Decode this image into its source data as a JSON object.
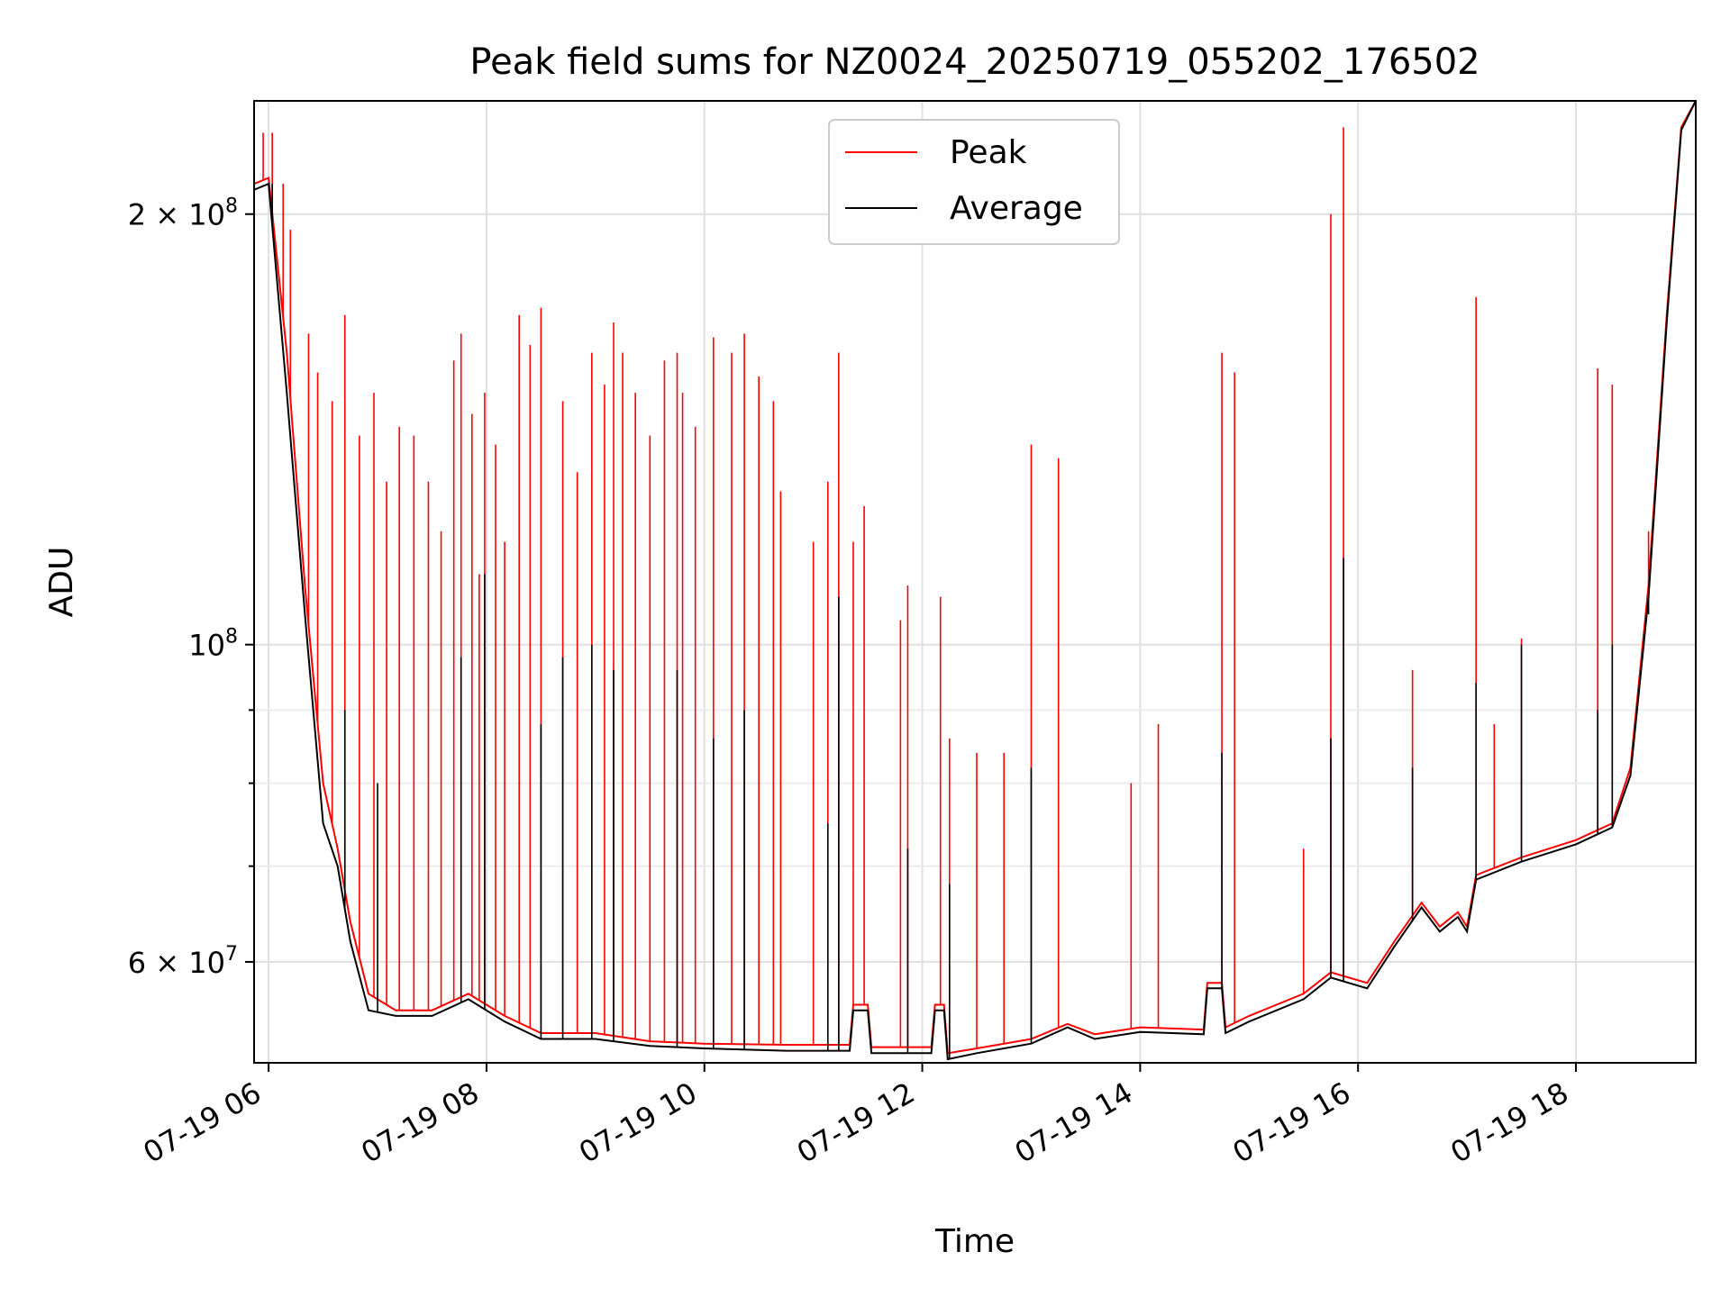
{
  "chart_data": {
    "type": "line",
    "title": "Peak field sums for NZ0024_20250719_055202_176502",
    "xlabel": "Time",
    "ylabel": "ADU",
    "x_scale": "time",
    "y_scale": "log",
    "xlim": [
      "2025-07-19 05:52",
      "2025-07-19 19:06"
    ],
    "ylim": [
      51000000,
      240000000
    ],
    "grid": true,
    "legend_position": "top-center",
    "x_ticks": [
      {
        "value": "2025-07-19 06:00",
        "label": "07-19 06"
      },
      {
        "value": "2025-07-19 08:00",
        "label": "07-19 08"
      },
      {
        "value": "2025-07-19 10:00",
        "label": "07-19 10"
      },
      {
        "value": "2025-07-19 12:00",
        "label": "07-19 12"
      },
      {
        "value": "2025-07-19 14:00",
        "label": "07-19 14"
      },
      {
        "value": "2025-07-19 16:00",
        "label": "07-19 16"
      },
      {
        "value": "2025-07-19 18:00",
        "label": "07-19 18"
      }
    ],
    "y_major_ticks": [
      {
        "value": 60000000,
        "label": "6 × 10^7",
        "mantissa": "6 × 10",
        "exp": "7"
      },
      {
        "value": 100000000,
        "label": "10^8",
        "mantissa": "10",
        "exp": "8"
      },
      {
        "value": 200000000,
        "label": "2 × 10^8",
        "mantissa": "2 × 10",
        "exp": "8"
      }
    ],
    "y_minor_ticks": [
      70000000,
      80000000,
      90000000
    ],
    "series": [
      {
        "name": "Peak",
        "color": "#ff0000",
        "baseline": [
          [
            "2025-07-19 05:52",
            210000000
          ],
          [
            "2025-07-19 06:00",
            212000000
          ],
          [
            "2025-07-19 06:10",
            160000000
          ],
          [
            "2025-07-19 06:20",
            110000000
          ],
          [
            "2025-07-19 06:30",
            80000000
          ],
          [
            "2025-07-19 06:38",
            72000000
          ],
          [
            "2025-07-19 06:45",
            64000000
          ],
          [
            "2025-07-19 06:55",
            57000000
          ],
          [
            "2025-07-19 07:10",
            55500000
          ],
          [
            "2025-07-19 07:30",
            55500000
          ],
          [
            "2025-07-19 07:50",
            57000000
          ],
          [
            "2025-07-19 08:10",
            55000000
          ],
          [
            "2025-07-19 08:30",
            53500000
          ],
          [
            "2025-07-19 09:00",
            53500000
          ],
          [
            "2025-07-19 09:30",
            52800000
          ],
          [
            "2025-07-19 10:00",
            52600000
          ],
          [
            "2025-07-19 10:45",
            52500000
          ],
          [
            "2025-07-19 11:20",
            52500000
          ],
          [
            "2025-07-19 11:22",
            56000000
          ],
          [
            "2025-07-19 11:30",
            56000000
          ],
          [
            "2025-07-19 11:32",
            52300000
          ],
          [
            "2025-07-19 12:05",
            52300000
          ],
          [
            "2025-07-19 12:07",
            56000000
          ],
          [
            "2025-07-19 12:12",
            56000000
          ],
          [
            "2025-07-19 12:14",
            51800000
          ],
          [
            "2025-07-19 12:30",
            52200000
          ],
          [
            "2025-07-19 13:00",
            53000000
          ],
          [
            "2025-07-19 13:20",
            54300000
          ],
          [
            "2025-07-19 13:35",
            53400000
          ],
          [
            "2025-07-19 14:00",
            54000000
          ],
          [
            "2025-07-19 14:35",
            53800000
          ],
          [
            "2025-07-19 14:37",
            58000000
          ],
          [
            "2025-07-19 14:45",
            58000000
          ],
          [
            "2025-07-19 14:47",
            54000000
          ],
          [
            "2025-07-19 15:00",
            55000000
          ],
          [
            "2025-07-19 15:30",
            57000000
          ],
          [
            "2025-07-19 15:45",
            59000000
          ],
          [
            "2025-07-19 16:05",
            58000000
          ],
          [
            "2025-07-19 16:20",
            62000000
          ],
          [
            "2025-07-19 16:35",
            66000000
          ],
          [
            "2025-07-19 16:45",
            63500000
          ],
          [
            "2025-07-19 16:55",
            65000000
          ],
          [
            "2025-07-19 17:00",
            63500000
          ],
          [
            "2025-07-19 17:05",
            69000000
          ],
          [
            "2025-07-19 17:30",
            71000000
          ],
          [
            "2025-07-19 18:00",
            73000000
          ],
          [
            "2025-07-19 18:20",
            75000000
          ],
          [
            "2025-07-19 18:30",
            82000000
          ],
          [
            "2025-07-19 18:40",
            110000000
          ],
          [
            "2025-07-19 18:50",
            170000000
          ],
          [
            "2025-07-19 18:58",
            230000000
          ],
          [
            "2025-07-19 19:06",
            240000000
          ]
        ],
        "spikes": [
          [
            "2025-07-19 05:57",
            228000000
          ],
          [
            "2025-07-19 06:02",
            228000000
          ],
          [
            "2025-07-19 06:08",
            210000000
          ],
          [
            "2025-07-19 06:12",
            195000000
          ],
          [
            "2025-07-19 06:22",
            165000000
          ],
          [
            "2025-07-19 06:27",
            155000000
          ],
          [
            "2025-07-19 06:35",
            148000000
          ],
          [
            "2025-07-19 06:42",
            170000000
          ],
          [
            "2025-07-19 06:50",
            140000000
          ],
          [
            "2025-07-19 06:58",
            150000000
          ],
          [
            "2025-07-19 07:05",
            130000000
          ],
          [
            "2025-07-19 07:12",
            142000000
          ],
          [
            "2025-07-19 07:20",
            140000000
          ],
          [
            "2025-07-19 07:28",
            130000000
          ],
          [
            "2025-07-19 07:35",
            120000000
          ],
          [
            "2025-07-19 07:42",
            158000000
          ],
          [
            "2025-07-19 07:46",
            165000000
          ],
          [
            "2025-07-19 07:52",
            145000000
          ],
          [
            "2025-07-19 07:56",
            112000000
          ],
          [
            "2025-07-19 07:59",
            150000000
          ],
          [
            "2025-07-19 08:05",
            138000000
          ],
          [
            "2025-07-19 08:10",
            118000000
          ],
          [
            "2025-07-19 08:18",
            170000000
          ],
          [
            "2025-07-19 08:24",
            162000000
          ],
          [
            "2025-07-19 08:30",
            172000000
          ],
          [
            "2025-07-19 08:42",
            148000000
          ],
          [
            "2025-07-19 08:50",
            132000000
          ],
          [
            "2025-07-19 08:58",
            160000000
          ],
          [
            "2025-07-19 09:05",
            152000000
          ],
          [
            "2025-07-19 09:10",
            168000000
          ],
          [
            "2025-07-19 09:15",
            160000000
          ],
          [
            "2025-07-19 09:22",
            150000000
          ],
          [
            "2025-07-19 09:30",
            140000000
          ],
          [
            "2025-07-19 09:38",
            158000000
          ],
          [
            "2025-07-19 09:45",
            160000000
          ],
          [
            "2025-07-19 09:48",
            150000000
          ],
          [
            "2025-07-19 09:55",
            142000000
          ],
          [
            "2025-07-19 10:05",
            164000000
          ],
          [
            "2025-07-19 10:15",
            160000000
          ],
          [
            "2025-07-19 10:22",
            165000000
          ],
          [
            "2025-07-19 10:30",
            154000000
          ],
          [
            "2025-07-19 10:38",
            148000000
          ],
          [
            "2025-07-19 10:42",
            128000000
          ],
          [
            "2025-07-19 11:00",
            118000000
          ],
          [
            "2025-07-19 11:08",
            130000000
          ],
          [
            "2025-07-19 11:14",
            160000000
          ],
          [
            "2025-07-19 11:22",
            118000000
          ],
          [
            "2025-07-19 11:28",
            125000000
          ],
          [
            "2025-07-19 11:48",
            104000000
          ],
          [
            "2025-07-19 11:52",
            110000000
          ],
          [
            "2025-07-19 12:10",
            108000000
          ],
          [
            "2025-07-19 12:15",
            86000000
          ],
          [
            "2025-07-19 12:30",
            84000000
          ],
          [
            "2025-07-19 12:45",
            84000000
          ],
          [
            "2025-07-19 13:00",
            138000000
          ],
          [
            "2025-07-19 13:15",
            135000000
          ],
          [
            "2025-07-19 13:55",
            80000000
          ],
          [
            "2025-07-19 14:10",
            88000000
          ],
          [
            "2025-07-19 14:45",
            160000000
          ],
          [
            "2025-07-19 14:52",
            155000000
          ],
          [
            "2025-07-19 15:30",
            72000000
          ],
          [
            "2025-07-19 15:45",
            200000000
          ],
          [
            "2025-07-19 15:52",
            230000000
          ],
          [
            "2025-07-19 16:30",
            96000000
          ],
          [
            "2025-07-19 17:05",
            175000000
          ],
          [
            "2025-07-19 17:15",
            88000000
          ],
          [
            "2025-07-19 17:30",
            101000000
          ],
          [
            "2025-07-19 18:12",
            156000000
          ],
          [
            "2025-07-19 18:20",
            152000000
          ],
          [
            "2025-07-19 18:40",
            120000000
          ]
        ]
      },
      {
        "name": "Average",
        "color": "#000000",
        "baseline": [
          [
            "2025-07-19 05:52",
            208000000
          ],
          [
            "2025-07-19 06:00",
            210000000
          ],
          [
            "2025-07-19 06:10",
            150000000
          ],
          [
            "2025-07-19 06:20",
            105000000
          ],
          [
            "2025-07-19 06:30",
            75000000
          ],
          [
            "2025-07-19 06:38",
            70000000
          ],
          [
            "2025-07-19 06:45",
            62000000
          ],
          [
            "2025-07-19 06:55",
            55500000
          ],
          [
            "2025-07-19 07:10",
            55000000
          ],
          [
            "2025-07-19 07:30",
            55000000
          ],
          [
            "2025-07-19 07:50",
            56500000
          ],
          [
            "2025-07-19 08:10",
            54500000
          ],
          [
            "2025-07-19 08:30",
            53000000
          ],
          [
            "2025-07-19 09:00",
            53000000
          ],
          [
            "2025-07-19 09:30",
            52400000
          ],
          [
            "2025-07-19 10:00",
            52200000
          ],
          [
            "2025-07-19 10:45",
            52000000
          ],
          [
            "2025-07-19 11:20",
            52000000
          ],
          [
            "2025-07-19 11:22",
            55500000
          ],
          [
            "2025-07-19 11:30",
            55500000
          ],
          [
            "2025-07-19 11:32",
            51800000
          ],
          [
            "2025-07-19 12:05",
            51800000
          ],
          [
            "2025-07-19 12:07",
            55500000
          ],
          [
            "2025-07-19 12:12",
            55500000
          ],
          [
            "2025-07-19 12:14",
            51300000
          ],
          [
            "2025-07-19 12:30",
            51800000
          ],
          [
            "2025-07-19 13:00",
            52600000
          ],
          [
            "2025-07-19 13:20",
            54000000
          ],
          [
            "2025-07-19 13:35",
            53000000
          ],
          [
            "2025-07-19 14:00",
            53600000
          ],
          [
            "2025-07-19 14:35",
            53400000
          ],
          [
            "2025-07-19 14:37",
            57500000
          ],
          [
            "2025-07-19 14:45",
            57500000
          ],
          [
            "2025-07-19 14:47",
            53500000
          ],
          [
            "2025-07-19 15:00",
            54500000
          ],
          [
            "2025-07-19 15:30",
            56500000
          ],
          [
            "2025-07-19 15:45",
            58500000
          ],
          [
            "2025-07-19 16:05",
            57500000
          ],
          [
            "2025-07-19 16:20",
            61500000
          ],
          [
            "2025-07-19 16:35",
            65500000
          ],
          [
            "2025-07-19 16:45",
            63000000
          ],
          [
            "2025-07-19 16:55",
            64500000
          ],
          [
            "2025-07-19 17:00",
            63000000
          ],
          [
            "2025-07-19 17:05",
            68500000
          ],
          [
            "2025-07-19 17:30",
            70500000
          ],
          [
            "2025-07-19 18:00",
            72500000
          ],
          [
            "2025-07-19 18:20",
            74500000
          ],
          [
            "2025-07-19 18:30",
            81000000
          ],
          [
            "2025-07-19 18:40",
            108000000
          ],
          [
            "2025-07-19 18:50",
            168000000
          ],
          [
            "2025-07-19 18:58",
            229000000
          ],
          [
            "2025-07-19 19:06",
            240000000
          ]
        ],
        "spikes": [
          [
            "2025-07-19 06:02",
            210000000
          ],
          [
            "2025-07-19 06:42",
            90000000
          ],
          [
            "2025-07-19 07:00",
            80000000
          ],
          [
            "2025-07-19 07:46",
            98000000
          ],
          [
            "2025-07-19 07:59",
            112000000
          ],
          [
            "2025-07-19 08:30",
            88000000
          ],
          [
            "2025-07-19 08:42",
            98000000
          ],
          [
            "2025-07-19 08:58",
            100000000
          ],
          [
            "2025-07-19 09:10",
            96000000
          ],
          [
            "2025-07-19 09:45",
            96000000
          ],
          [
            "2025-07-19 10:05",
            86000000
          ],
          [
            "2025-07-19 10:22",
            90000000
          ],
          [
            "2025-07-19 11:08",
            75000000
          ],
          [
            "2025-07-19 11:14",
            108000000
          ],
          [
            "2025-07-19 11:52",
            72000000
          ],
          [
            "2025-07-19 12:15",
            68000000
          ],
          [
            "2025-07-19 13:00",
            82000000
          ],
          [
            "2025-07-19 14:45",
            84000000
          ],
          [
            "2025-07-19 15:45",
            86000000
          ],
          [
            "2025-07-19 15:52",
            115000000
          ],
          [
            "2025-07-19 16:30",
            82000000
          ],
          [
            "2025-07-19 17:05",
            94000000
          ],
          [
            "2025-07-19 17:30",
            100000000
          ],
          [
            "2025-07-19 18:12",
            90000000
          ],
          [
            "2025-07-19 18:20",
            100000000
          ],
          [
            "2025-07-19 18:40",
            105000000
          ]
        ]
      }
    ]
  }
}
